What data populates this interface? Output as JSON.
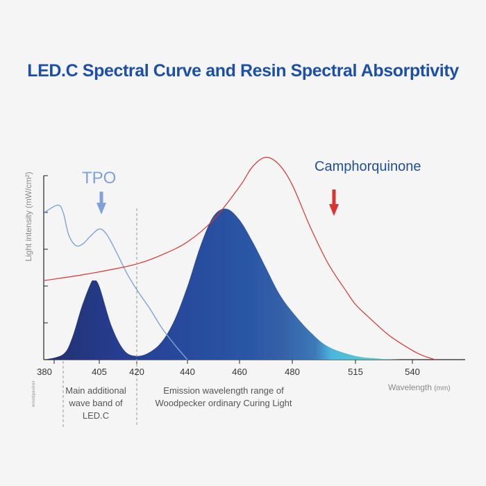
{
  "title": "LED.C Spectral Curve and Resin Spectral Absorptivity",
  "labels": {
    "tpo": "TPO",
    "camphorquinone": "Camphorquinone",
    "ylabel": "Light intensity (mW/cm²)",
    "xlabel": "Wavelength",
    "xunit": "(mm)"
  },
  "annotations": {
    "main_band": "Main additional wave band of LED.C",
    "emission_range": "Emission wavelength range of Woodpecker ordinary Curing Light"
  },
  "logo_text": "woodpecker",
  "colors": {
    "title": "#1c4fa8",
    "tpo_curve": "#7fa3d6",
    "cq_curve": "#d9342f",
    "led_dark": "#22306e",
    "led_blue": "#2c58a6",
    "led_cyan": "#4bc3dc",
    "led_teal": "#67c6ad"
  },
  "chart_data": {
    "type": "line",
    "x_ticks": [
      "380",
      "405",
      "420",
      "440",
      "460",
      "480",
      "515",
      "540"
    ],
    "ylim": [
      0,
      5
    ],
    "y_ticks": [
      1,
      2,
      3,
      4,
      5
    ],
    "grid": false,
    "reference_lines": [
      {
        "x": 385,
        "label": "annotations.main_band"
      },
      {
        "x": 420,
        "label": "annotations.emission_range"
      }
    ],
    "series": [
      {
        "name": "LED.C",
        "style": "filled-area-gradient",
        "x": [
          380,
          385,
          390,
          395,
          400,
          402,
          405,
          410,
          415,
          420,
          425,
          430,
          435,
          440,
          445,
          450,
          455,
          460,
          465,
          470,
          475,
          480,
          490,
          500,
          515,
          525,
          530,
          535
        ],
        "y": [
          0.0,
          0.15,
          0.6,
          1.4,
          2.05,
          2.15,
          2.0,
          0.9,
          0.25,
          0.1,
          0.2,
          0.5,
          1.1,
          2.0,
          3.1,
          3.9,
          4.1,
          3.8,
          3.2,
          2.5,
          1.8,
          1.3,
          0.75,
          0.35,
          0.1,
          0.03,
          0.01,
          0.0
        ]
      },
      {
        "name": "TPO",
        "style": "line",
        "x": [
          380,
          382,
          385,
          388,
          392,
          396,
          400,
          405,
          408,
          412,
          416,
          420,
          425,
          430,
          435,
          440
        ],
        "y": [
          4.0,
          4.2,
          4.0,
          3.4,
          3.1,
          3.15,
          3.35,
          3.55,
          3.4,
          2.9,
          2.35,
          1.9,
          1.4,
          0.85,
          0.4,
          0.0
        ]
      },
      {
        "name": "Camphorquinone",
        "style": "line",
        "x": [
          380,
          395,
          410,
          420,
          430,
          440,
          450,
          460,
          465,
          470,
          475,
          480,
          490,
          500,
          510,
          515,
          520,
          530,
          540,
          545,
          550
        ],
        "y": [
          2.15,
          2.3,
          2.45,
          2.6,
          2.85,
          3.2,
          3.8,
          4.7,
          5.25,
          5.5,
          5.3,
          4.75,
          3.6,
          2.6,
          1.85,
          1.5,
          1.2,
          0.65,
          0.25,
          0.1,
          0.0
        ]
      }
    ]
  }
}
